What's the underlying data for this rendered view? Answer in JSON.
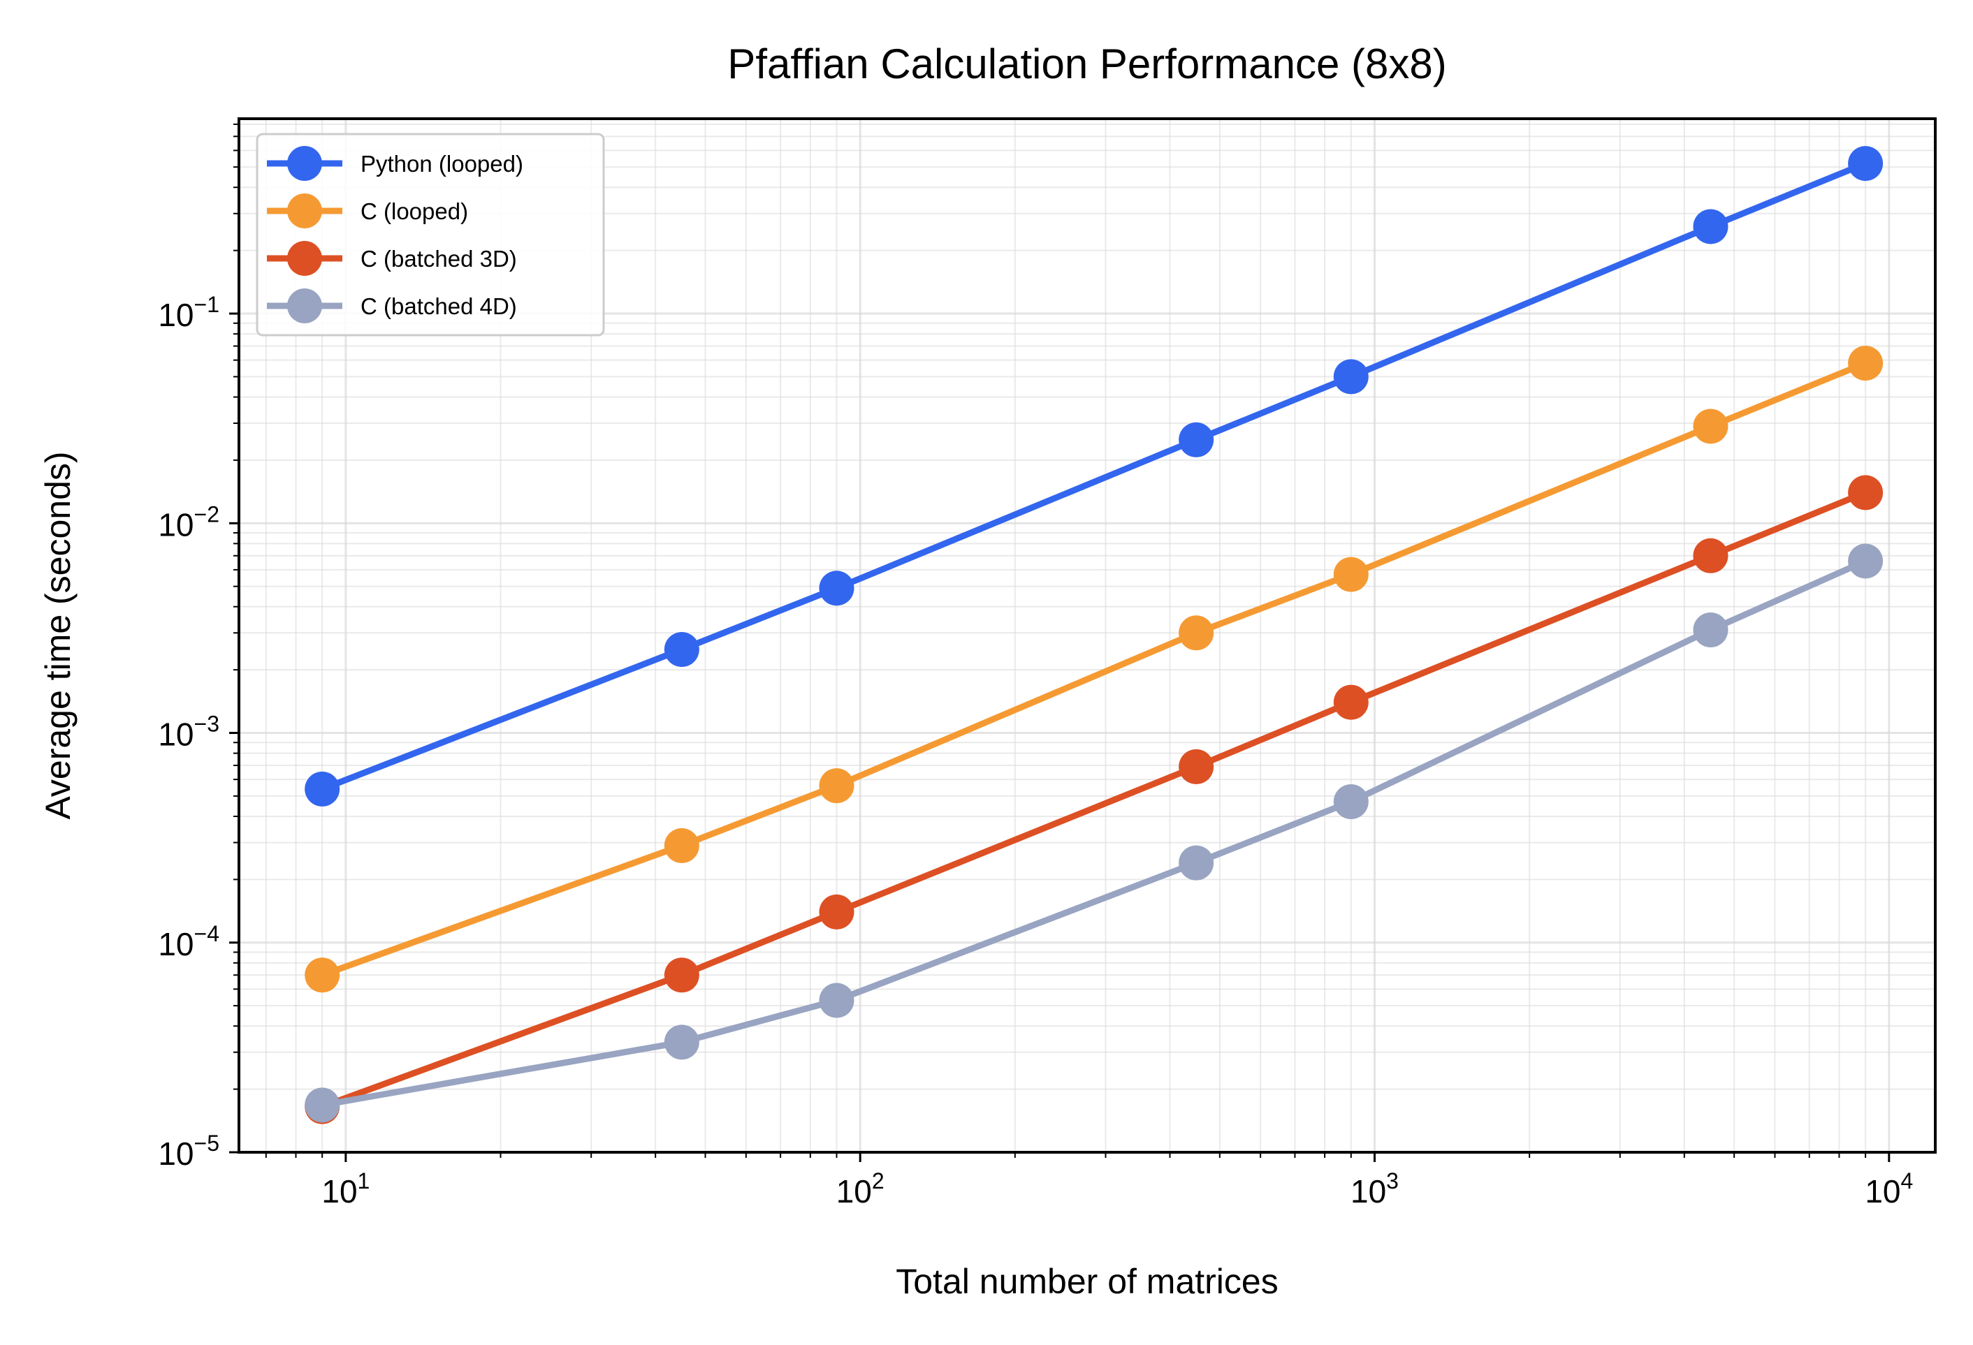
{
  "chart_data": {
    "type": "line",
    "title": "Pfaffian Calculation Performance (8x8)",
    "xlabel": "Total number of matrices",
    "ylabel": "Average time (seconds)",
    "xscale": "log",
    "yscale": "log",
    "xlim": [
      6.2,
      12300
    ],
    "ylim": [
      1e-05,
      0.85
    ],
    "x_ticks": [
      {
        "value": 10,
        "base": "10",
        "exp": "1"
      },
      {
        "value": 100,
        "base": "10",
        "exp": "2"
      },
      {
        "value": 1000,
        "base": "10",
        "exp": "3"
      },
      {
        "value": 10000,
        "base": "10",
        "exp": "4"
      }
    ],
    "y_ticks": [
      {
        "value": 1e-05,
        "base": "10",
        "exp": "−5"
      },
      {
        "value": 0.0001,
        "base": "10",
        "exp": "−4"
      },
      {
        "value": 0.001,
        "base": "10",
        "exp": "−3"
      },
      {
        "value": 0.01,
        "base": "10",
        "exp": "−2"
      },
      {
        "value": 0.1,
        "base": "10",
        "exp": "−1"
      }
    ],
    "grid": true,
    "legend_position": "top-left",
    "x": [
      9,
      45,
      90,
      450,
      900,
      4500,
      9000
    ],
    "series": [
      {
        "name": "Python (looped)",
        "color": "#3366ee",
        "values": [
          0.00054,
          0.0025,
          0.0049,
          0.025,
          0.05,
          0.26,
          0.52
        ]
      },
      {
        "name": "C (looped)",
        "color": "#f59a32",
        "values": [
          7e-05,
          0.00029,
          0.00056,
          0.003,
          0.0057,
          0.029,
          0.058
        ]
      },
      {
        "name": "C (batched 3D)",
        "color": "#dd5024",
        "values": [
          1.65e-05,
          7e-05,
          0.00014,
          0.00069,
          0.0014,
          0.007,
          0.014
        ]
      },
      {
        "name": "C (batched 4D)",
        "color": "#98a4c1",
        "values": [
          1.68e-05,
          3.35e-05,
          5.3e-05,
          0.00024,
          0.00047,
          0.0031,
          0.0066
        ]
      }
    ]
  }
}
